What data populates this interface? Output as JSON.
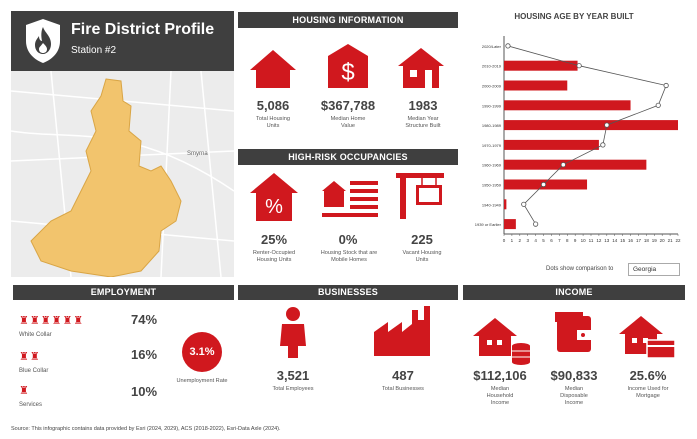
{
  "header": {
    "title": "Fire District Profile",
    "subtitle": "Station #2"
  },
  "map": {
    "label": "Smyrna"
  },
  "housing": {
    "title": "HOUSING INFORMATION",
    "items": [
      {
        "icon": "house-icon",
        "value": "5,086",
        "label": "Total Housing Units"
      },
      {
        "icon": "dollar-icon",
        "value": "$367,788",
        "label": "Median Home Value"
      },
      {
        "icon": "home-icon",
        "value": "1983",
        "label": "Median Year Structure Built"
      }
    ]
  },
  "risk": {
    "title": "HIGH-RISK OCCUPANCIES",
    "items": [
      {
        "icon": "percent-house-icon",
        "value": "25%",
        "label": "Renter-Occupied Housing Units"
      },
      {
        "icon": "mobile-home-icon",
        "value": "0%",
        "label": "Housing Stock that are Mobile Homes"
      },
      {
        "icon": "vacant-sign-icon",
        "value": "225",
        "label": "Vacant Housing Units"
      }
    ]
  },
  "chart_data": {
    "type": "bar",
    "title": "HOUSING AGE BY YEAR BUILT",
    "categories": [
      "2020/Later",
      "2010-2019",
      "2000-2009",
      "1990-1999",
      "1980-1989",
      "1970-1979",
      "1960-1969",
      "1950-1959",
      "1940-1949",
      "1939 or Earlier"
    ],
    "series": [
      {
        "values": [
          0,
          9.3,
          8,
          16,
          22,
          12,
          18,
          10.5,
          0.3,
          1.5
        ]
      },
      {
        "values": [
          0.5,
          9.5,
          20.5,
          19.5,
          13,
          12.5,
          7.5,
          5,
          2.5,
          4
        ]
      }
    ],
    "xlim": [
      0,
      22
    ],
    "xticks": [
      0,
      1,
      2,
      3,
      4,
      5,
      6,
      7,
      8,
      9,
      10,
      11,
      12,
      13,
      14,
      15,
      16,
      17,
      18,
      19,
      20,
      21,
      22
    ],
    "comparison_label": "Dots show comparison to",
    "comparison_value": "Georgia"
  },
  "employment": {
    "title": "EMPLOYMENT",
    "rows": [
      {
        "value": "74%",
        "label": "White Collar"
      },
      {
        "value": "16%",
        "label": "Blue Collar"
      },
      {
        "value": "10%",
        "label": "Services"
      }
    ],
    "unemployment": {
      "value": "3.1%",
      "label": "Unemployment Rate"
    }
  },
  "businesses": {
    "title": "BUSINESSES",
    "items": [
      {
        "icon": "person-icon",
        "value": "3,521",
        "label": "Total Employees"
      },
      {
        "icon": "factory-icon",
        "value": "487",
        "label": "Total Businesses"
      }
    ]
  },
  "income": {
    "title": "INCOME",
    "items": [
      {
        "icon": "house-coins-icon",
        "value": "$112,106",
        "label": "Median Household Income"
      },
      {
        "icon": "wallet-icon",
        "value": "$90,833",
        "label": "Median Disposable Income"
      },
      {
        "icon": "house-card-icon",
        "value": "25.6%",
        "label": "Income Used for Mortgage"
      }
    ]
  },
  "footer": {
    "source": "Source: This infographic contains data provided by Esri (2024, 2029), ACS (2018-2022), Esri-Data Axle (2024)."
  },
  "colors": {
    "accent": "#d0181e",
    "header": "#3f3f3f",
    "map_area": "#f2c46d"
  }
}
